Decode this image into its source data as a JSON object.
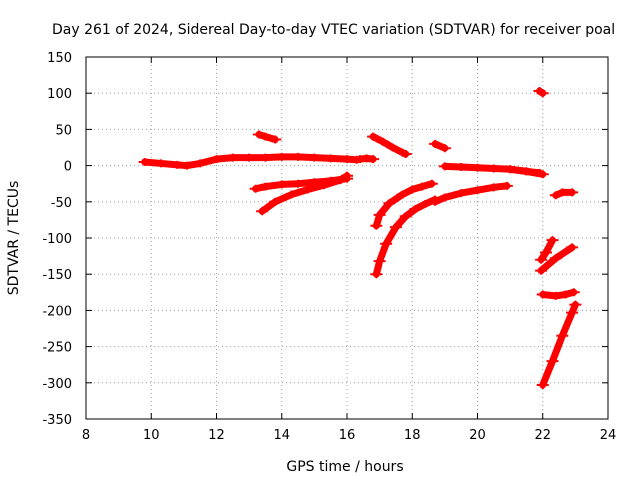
{
  "chart_data": {
    "type": "scatter",
    "title": "Day 261 of 2024, Sidereal Day-to-day VTEC variation (SDTVAR) for receiver poal",
    "xlabel": "GPS time / hours",
    "ylabel": "SDTVAR / TECUs",
    "xlim": [
      8,
      24
    ],
    "ylim": [
      -350,
      150
    ],
    "xticks": [
      8,
      10,
      12,
      14,
      16,
      18,
      20,
      22,
      24
    ],
    "yticks": [
      150,
      100,
      50,
      0,
      -50,
      -100,
      -150,
      -200,
      -250,
      -300,
      -350
    ],
    "grid": true,
    "legend": "none",
    "color": "#ff0000",
    "series": [
      {
        "x": [
          9.8,
          10.3,
          10.8,
          11.1,
          11.5,
          12.0,
          12.5,
          13.0,
          13.5,
          14.0,
          14.5,
          15.0,
          15.5,
          16.0,
          16.3
        ],
        "y": [
          5,
          3,
          1,
          0,
          3,
          9,
          11,
          11,
          11,
          12,
          12,
          11,
          10,
          9,
          8
        ]
      },
      {
        "x": [
          16.4,
          16.6,
          16.8
        ],
        "y": [
          9,
          10,
          9
        ]
      },
      {
        "x": [
          13.3,
          13.5,
          13.8
        ],
        "y": [
          43,
          40,
          36
        ]
      },
      {
        "x": [
          13.2,
          13.5,
          14.0,
          14.5,
          15.0,
          15.5,
          16.0
        ],
        "y": [
          -32,
          -29,
          -26,
          -25,
          -23,
          -21,
          -18
        ]
      },
      {
        "x": [
          13.4,
          13.8,
          14.3,
          14.8,
          15.3,
          15.8,
          16.0
        ],
        "y": [
          -63,
          -50,
          -40,
          -33,
          -27,
          -20,
          -14
        ]
      },
      {
        "x": [
          16.8,
          17.1,
          17.4,
          17.7,
          17.8
        ],
        "y": [
          40,
          33,
          25,
          18,
          16
        ]
      },
      {
        "x": [
          16.9,
          17.0,
          17.3,
          17.7,
          18.0,
          18.3,
          18.6
        ],
        "y": [
          -83,
          -68,
          -52,
          -40,
          -33,
          -29,
          -25
        ]
      },
      {
        "x": [
          16.9,
          17.0,
          17.2,
          17.5,
          17.8,
          18.1,
          18.4,
          18.7
        ],
        "y": [
          -150,
          -132,
          -108,
          -85,
          -70,
          -60,
          -53,
          -47
        ]
      },
      {
        "x": [
          18.7,
          19.0
        ],
        "y": [
          30,
          24
        ]
      },
      {
        "x": [
          18.7,
          19.0,
          19.5,
          20.0,
          20.5,
          20.9
        ],
        "y": [
          -50,
          -44,
          -38,
          -34,
          -30,
          -28
        ]
      },
      {
        "x": [
          19.0,
          19.5,
          20.0,
          20.5,
          21.0,
          21.5,
          22.0
        ],
        "y": [
          -1,
          -2,
          -3,
          -4,
          -5,
          -8,
          -12
        ]
      },
      {
        "x": [
          21.0,
          21.5,
          21.9
        ],
        "y": [
          -5,
          -8,
          -10
        ]
      },
      {
        "x": [
          21.9,
          22.0
        ],
        "y": [
          103,
          100
        ]
      },
      {
        "x": [
          22.4,
          22.6,
          22.9
        ],
        "y": [
          -41,
          -37,
          -37
        ]
      },
      {
        "x": [
          21.95,
          22.1,
          22.3
        ],
        "y": [
          -130,
          -120,
          -103
        ]
      },
      {
        "x": [
          21.95,
          22.4,
          22.9
        ],
        "y": [
          -145,
          -128,
          -113
        ]
      },
      {
        "x": [
          22.0,
          22.4,
          22.7,
          22.95
        ],
        "y": [
          -178,
          -180,
          -178,
          -175
        ]
      },
      {
        "x": [
          22.0,
          22.3,
          22.6,
          22.9,
          23.0
        ],
        "y": [
          -303,
          -270,
          -235,
          -203,
          -192
        ]
      }
    ]
  }
}
